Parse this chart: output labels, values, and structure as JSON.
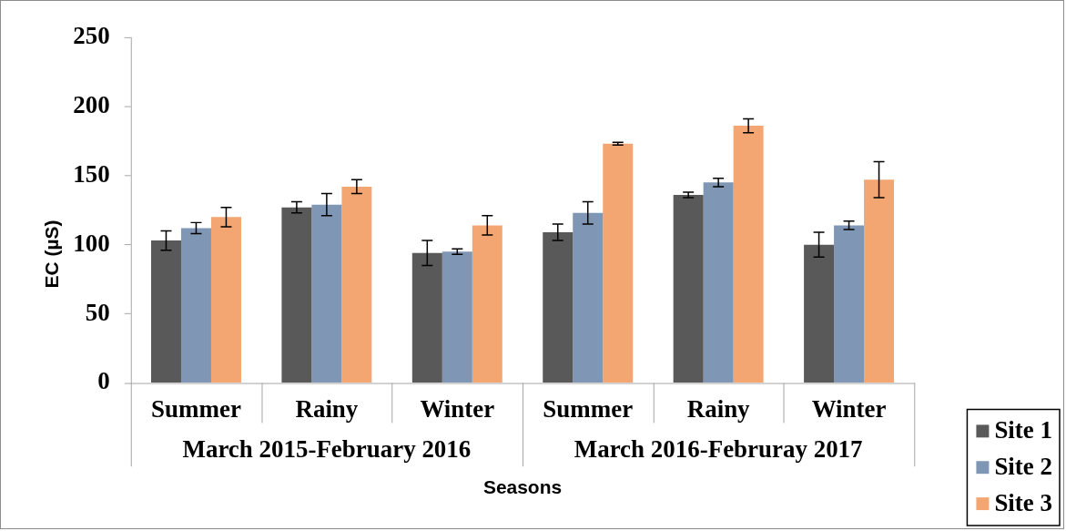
{
  "chart_data": {
    "type": "bar",
    "xlabel": "Seasons",
    "ylabel": "EC (µS)",
    "categories": [
      "Summer",
      "Rainy",
      "Winter",
      "Summer",
      "Rainy",
      "Winter"
    ],
    "annotations": [
      "March 2015-February 2016",
      "March 2016-Februray 2017"
    ],
    "series": [
      {
        "name": "Site 1",
        "color": "#595959",
        "values": [
          103,
          127,
          94,
          109,
          136,
          100
        ],
        "errors": [
          7,
          4,
          9,
          6,
          2,
          9
        ]
      },
      {
        "name": "Site 2",
        "color": "#7f96b4",
        "values": [
          112,
          129,
          95,
          123,
          145,
          114
        ],
        "errors": [
          4,
          8,
          2,
          8,
          3,
          3
        ]
      },
      {
        "name": "Site 3",
        "color": "#f4a672",
        "values": [
          120,
          142,
          114,
          173,
          186,
          147
        ],
        "errors": [
          7,
          5,
          7,
          1,
          5,
          13
        ]
      }
    ],
    "ylim": [
      0,
      250
    ],
    "yticks": [
      0,
      50,
      100,
      150,
      200,
      250
    ],
    "grid": false,
    "legend": "bottom right"
  }
}
